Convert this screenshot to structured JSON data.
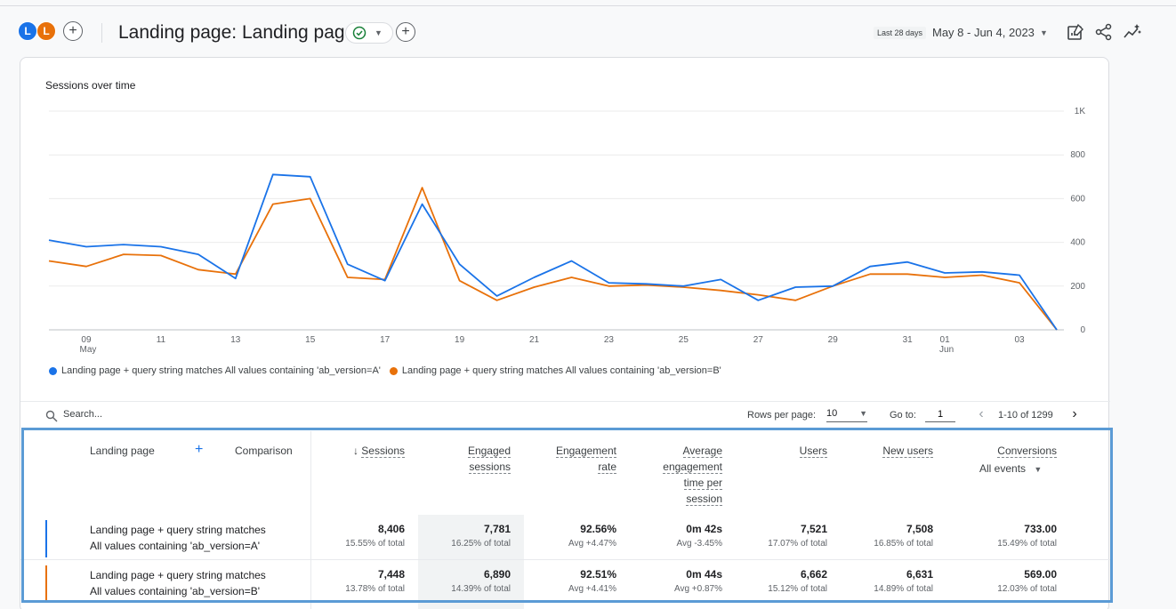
{
  "header": {
    "avatars": [
      "L",
      "L"
    ],
    "title": "Landing page: Landing page",
    "date_badge": "Last 28 days",
    "date_range": "May 8 - Jun 4, 2023",
    "icons": [
      "edit-report-icon",
      "share-icon",
      "insights-icon"
    ]
  },
  "chart": {
    "title": "Sessions over time",
    "legend": [
      "Landing page + query string matches All values containing 'ab_version=A'",
      "Landing page + query string matches All values containing 'ab_version=B'"
    ]
  },
  "chart_data": {
    "type": "line",
    "title": "Sessions over time",
    "x": [
      "May 8",
      "May 9",
      "May 10",
      "May 11",
      "May 12",
      "May 13",
      "May 14",
      "May 15",
      "May 16",
      "May 17",
      "May 18",
      "May 19",
      "May 20",
      "May 21",
      "May 22",
      "May 23",
      "May 24",
      "May 25",
      "May 26",
      "May 27",
      "May 28",
      "May 29",
      "May 30",
      "May 31",
      "Jun 1",
      "Jun 2",
      "Jun 3",
      "Jun 4"
    ],
    "x_ticks": [
      {
        "i": 1,
        "label": "09",
        "sub": "May"
      },
      {
        "i": 3,
        "label": "11",
        "sub": ""
      },
      {
        "i": 5,
        "label": "13",
        "sub": ""
      },
      {
        "i": 7,
        "label": "15",
        "sub": ""
      },
      {
        "i": 9,
        "label": "17",
        "sub": ""
      },
      {
        "i": 11,
        "label": "19",
        "sub": ""
      },
      {
        "i": 13,
        "label": "21",
        "sub": ""
      },
      {
        "i": 15,
        "label": "23",
        "sub": ""
      },
      {
        "i": 17,
        "label": "25",
        "sub": ""
      },
      {
        "i": 19,
        "label": "27",
        "sub": ""
      },
      {
        "i": 21,
        "label": "29",
        "sub": ""
      },
      {
        "i": 23,
        "label": "31",
        "sub": ""
      },
      {
        "i": 24,
        "label": "01",
        "sub": "Jun"
      },
      {
        "i": 26,
        "label": "03",
        "sub": ""
      }
    ],
    "y_ticks": [
      {
        "v": 0,
        "label": "0"
      },
      {
        "v": 200,
        "label": "200"
      },
      {
        "v": 400,
        "label": "400"
      },
      {
        "v": 600,
        "label": "600"
      },
      {
        "v": 800,
        "label": "800"
      },
      {
        "v": 1000,
        "label": "1K"
      }
    ],
    "ylim": [
      0,
      1000
    ],
    "grid": true,
    "legend_position": "bottom-left",
    "series": [
      {
        "name": "Landing page + query string matches All values containing 'ab_version=A'",
        "color": "#1a73e8",
        "values": [
          410,
          380,
          390,
          380,
          345,
          235,
          710,
          700,
          300,
          225,
          575,
          300,
          155,
          240,
          315,
          215,
          210,
          200,
          230,
          135,
          195,
          200,
          290,
          310,
          260,
          265,
          250,
          0
        ]
      },
      {
        "name": "Landing page + query string matches All values containing 'ab_version=B'",
        "color": "#e8710a",
        "values": [
          315,
          290,
          345,
          340,
          275,
          255,
          575,
          600,
          240,
          230,
          650,
          225,
          135,
          195,
          240,
          200,
          205,
          195,
          180,
          160,
          135,
          200,
          255,
          255,
          240,
          250,
          215,
          0
        ]
      }
    ]
  },
  "toolbar": {
    "search_placeholder": "Search...",
    "rows_per_page_label": "Rows per page:",
    "rows_per_page_value": "10",
    "goto_label": "Go to:",
    "goto_value": "1",
    "page_range": "1-10 of 1299"
  },
  "table": {
    "dimension_header": "Landing page",
    "comparison_header": "Comparison",
    "columns": {
      "sessions": [
        "Sessions"
      ],
      "engaged": [
        "Engaged",
        "sessions"
      ],
      "rate": [
        "Engagement",
        "rate"
      ],
      "avg": [
        "Average",
        "engagement",
        "time per",
        "session"
      ],
      "users": [
        "Users"
      ],
      "new_users": [
        "New users"
      ],
      "conversions": [
        "Conversions"
      ]
    },
    "conversions_sub": "All events",
    "rows": [
      {
        "color": "#1a73e8",
        "label_line1": "Landing page + query string matches",
        "label_line2": "All values containing 'ab_version=A'",
        "sessions": "8,406",
        "sessions_sub": "15.55% of total",
        "engaged": "7,781",
        "engaged_sub": "16.25% of total",
        "rate": "92.56%",
        "rate_sub": "Avg +4.47%",
        "avg": "0m 42s",
        "avg_sub": "Avg -3.45%",
        "users": "7,521",
        "users_sub": "17.07% of total",
        "new_users": "7,508",
        "new_users_sub": "16.85% of total",
        "conversions": "733.00",
        "conversions_sub": "15.49% of total"
      },
      {
        "color": "#e8710a",
        "label_line1": "Landing page + query string matches",
        "label_line2": "All values containing 'ab_version=B'",
        "sessions": "7,448",
        "sessions_sub": "13.78% of total",
        "engaged": "6,890",
        "engaged_sub": "14.39% of total",
        "rate": "92.51%",
        "rate_sub": "Avg +4.41%",
        "avg": "0m 44s",
        "avg_sub": "Avg +0.87%",
        "users": "6,662",
        "users_sub": "15.12% of total",
        "new_users": "6,631",
        "new_users_sub": "14.89% of total",
        "conversions": "569.00",
        "conversions_sub": "12.03% of total"
      }
    ]
  }
}
